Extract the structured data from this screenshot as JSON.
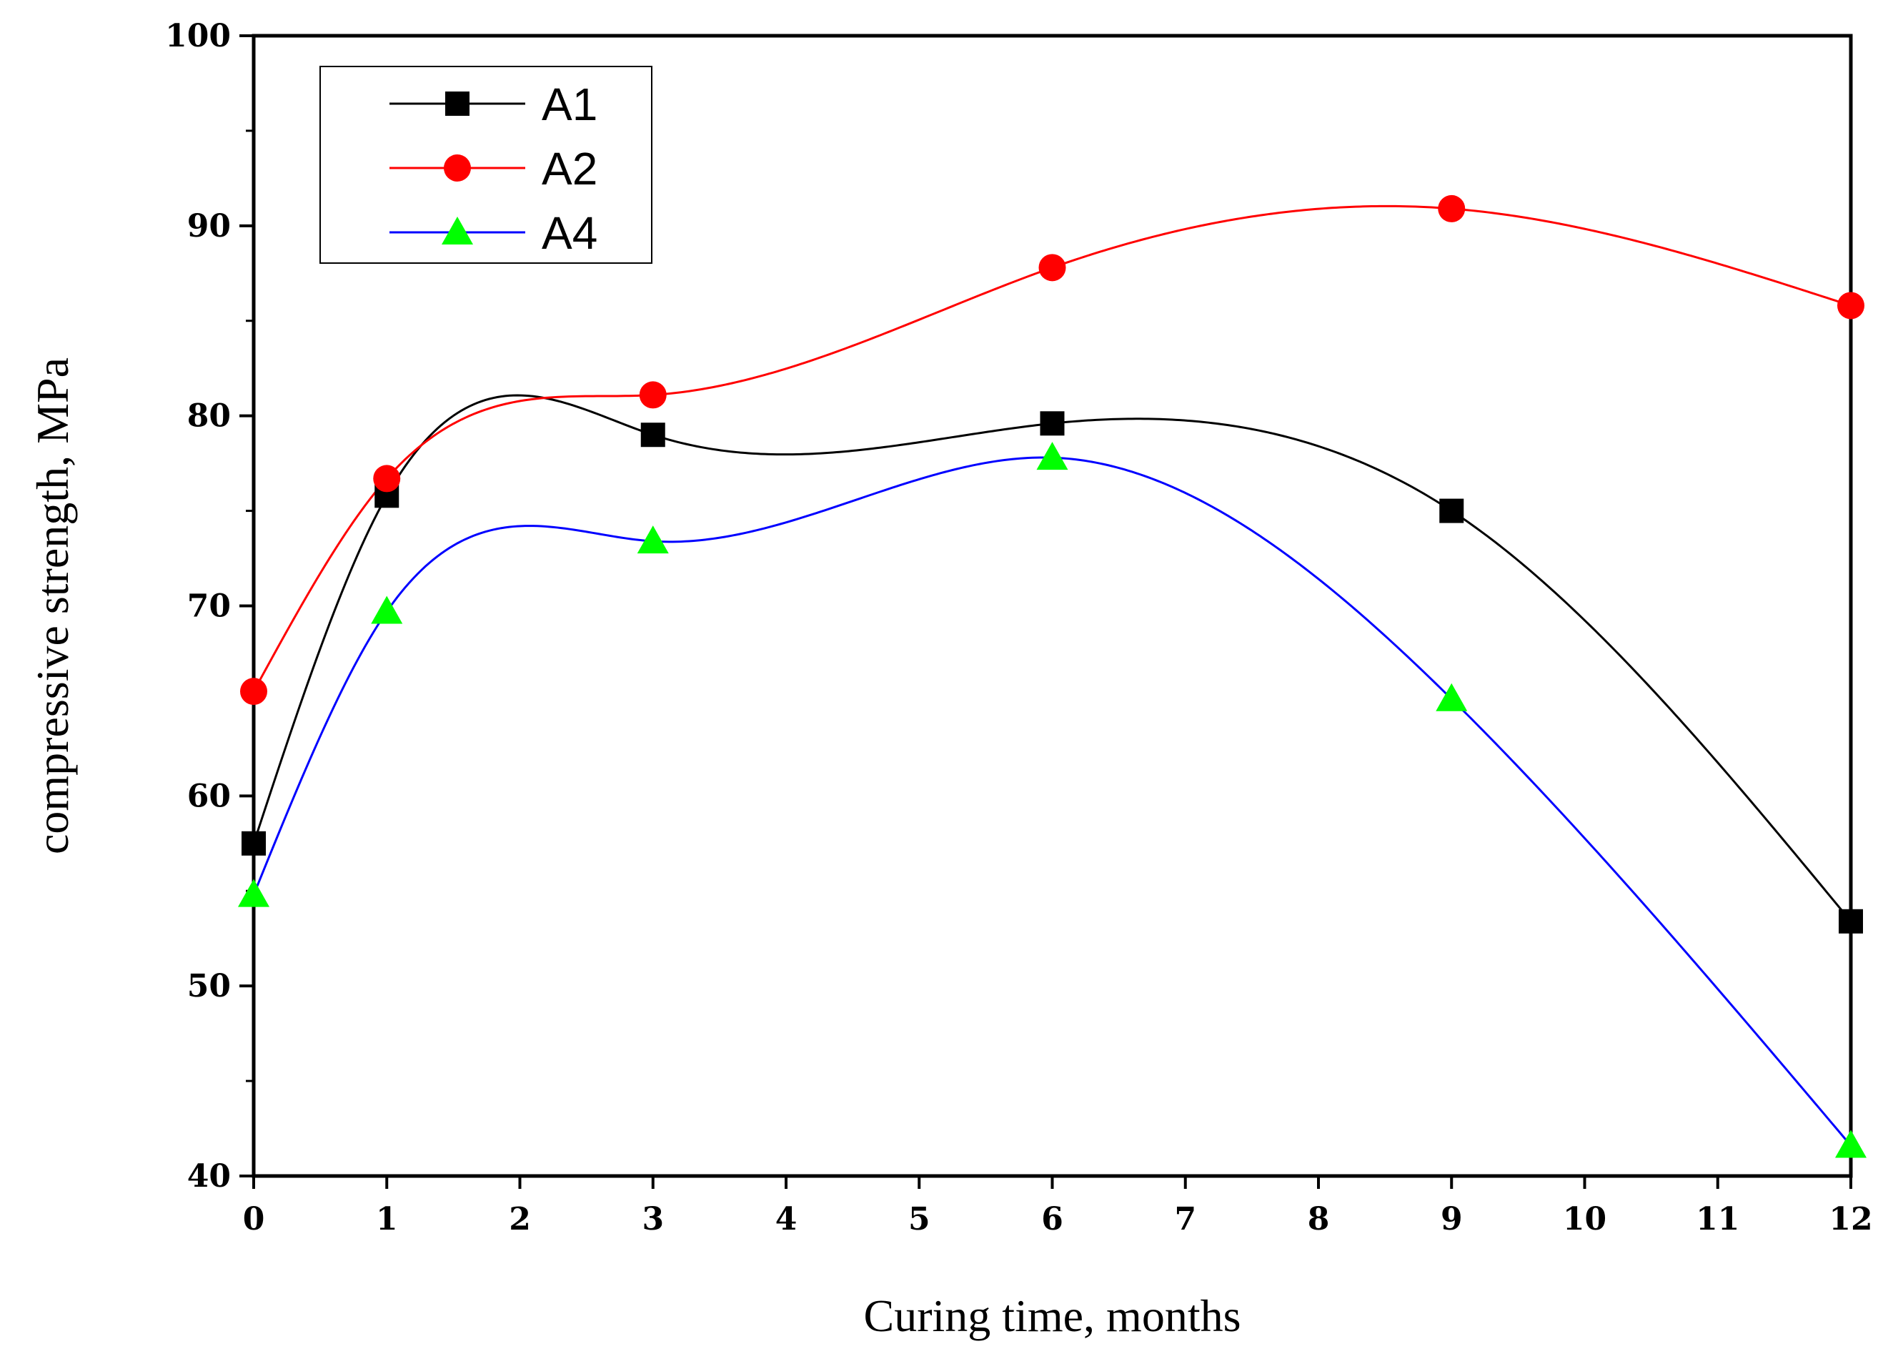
{
  "chart_data": {
    "type": "line",
    "title": "",
    "xlabel": "Curing time, months",
    "ylabel": "compressive strength, MPa",
    "xlim": [
      0,
      12
    ],
    "ylim": [
      40,
      100
    ],
    "xticks": [
      0,
      1,
      2,
      3,
      4,
      5,
      6,
      7,
      8,
      9,
      10,
      11,
      12
    ],
    "yticks": [
      40,
      50,
      60,
      70,
      80,
      90,
      100
    ],
    "grid": false,
    "legend_position": "top-left",
    "smooth": true,
    "series": [
      {
        "name": "A1",
        "color": "#000000",
        "marker": "square",
        "marker_color": "#000000",
        "x": [
          0,
          1,
          3,
          6,
          9,
          12
        ],
        "y": [
          57.5,
          75.8,
          79.0,
          79.6,
          75.0,
          53.4
        ]
      },
      {
        "name": "A2",
        "color": "#ff0000",
        "marker": "circle",
        "marker_color": "#ff0000",
        "x": [
          0,
          1,
          3,
          6,
          9,
          12
        ],
        "y": [
          65.5,
          76.7,
          81.1,
          87.8,
          90.9,
          85.8
        ]
      },
      {
        "name": "A4",
        "color": "#0000ff",
        "marker": "triangle",
        "marker_color": "#00ff00",
        "x": [
          0,
          1,
          3,
          6,
          9,
          12
        ],
        "y": [
          54.8,
          69.7,
          73.4,
          77.8,
          65.1,
          41.6
        ]
      }
    ]
  }
}
